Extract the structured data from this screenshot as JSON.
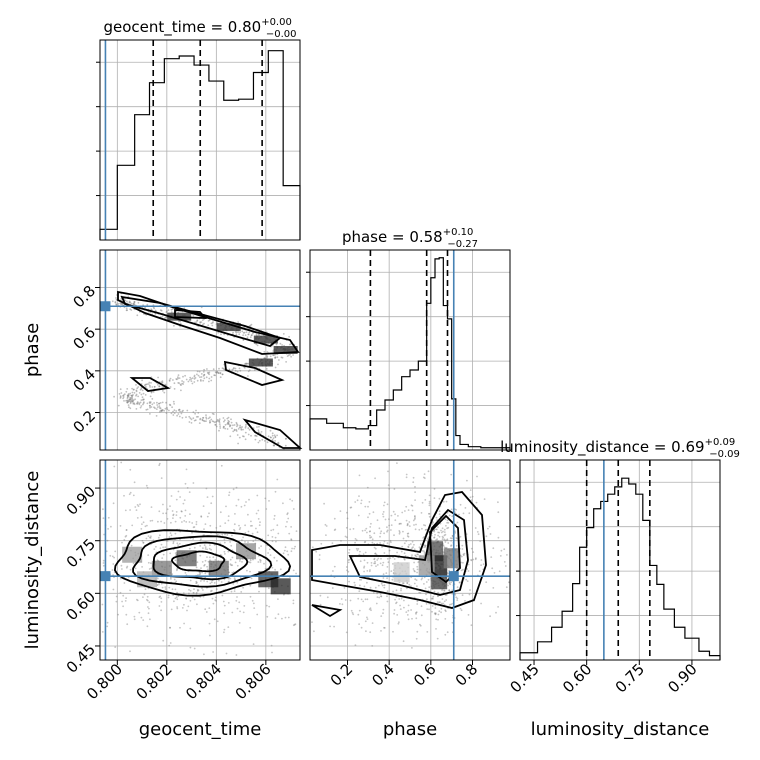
{
  "chart_data": {
    "type": "corner",
    "parameters": [
      "geocent_time",
      "phase",
      "luminosity_distance"
    ],
    "truths": {
      "geocent_time": 0.79952,
      "phase": 0.71,
      "luminosity_distance": 0.649
    },
    "panels": [
      {
        "id": "geocent_time-hist",
        "type": "histogram",
        "param": "geocent_time",
        "title_name": "geocent_time = 0.80",
        "title_plus": "+0.00",
        "title_minus": "−0.00",
        "xlim": [
          0.7993,
          0.80738
        ],
        "quantiles": [
          0.80145,
          0.80335,
          0.80585
        ],
        "bins": [
          0.7993,
          0.8,
          0.8007,
          0.8013,
          0.8019,
          0.8025,
          0.8031,
          0.8037,
          0.8043,
          0.8049,
          0.8055,
          0.8061,
          0.8067,
          0.80738
        ],
        "values": [
          0.2,
          1.4,
          2.35,
          2.95,
          3.4,
          3.45,
          3.28,
          2.98,
          2.62,
          2.64,
          3.14,
          3.55,
          1.02
        ],
        "ylim": [
          0,
          3.75
        ]
      },
      {
        "id": "phase-hist",
        "type": "histogram",
        "param": "phase",
        "title_name": "phase = 0.58",
        "title_plus": "+0.10",
        "title_minus": "−0.27",
        "xlim": [
          0.02,
          0.98
        ],
        "quantiles": [
          0.31,
          0.58,
          0.68
        ],
        "bins": [
          0.02,
          0.1,
          0.18,
          0.24,
          0.3,
          0.34,
          0.38,
          0.42,
          0.46,
          0.5,
          0.54,
          0.58,
          0.6,
          0.62,
          0.64,
          0.66,
          0.68,
          0.7,
          0.72,
          0.74,
          0.78,
          0.84,
          0.98
        ],
        "values": [
          0.28,
          0.24,
          0.2,
          0.19,
          0.22,
          0.36,
          0.45,
          0.54,
          0.66,
          0.72,
          0.8,
          1.32,
          1.55,
          1.72,
          1.73,
          1.3,
          1.18,
          0.46,
          0.13,
          0.05,
          0.03,
          0.02
        ],
        "ylim": [
          0,
          1.8
        ]
      },
      {
        "id": "luminosity_distance-hist",
        "type": "histogram",
        "param": "luminosity_distance",
        "title_name": "luminosity_distance = 0.69",
        "title_plus": "+0.09",
        "title_minus": "−0.09",
        "xlim": [
          0.41,
          0.98
        ],
        "quantiles": [
          0.6,
          0.69,
          0.78
        ],
        "bins": [
          0.41,
          0.46,
          0.5,
          0.53,
          0.56,
          0.58,
          0.6,
          0.62,
          0.64,
          0.66,
          0.68,
          0.7,
          0.72,
          0.74,
          0.76,
          0.78,
          0.8,
          0.82,
          0.85,
          0.88,
          0.92,
          0.95,
          0.98
        ],
        "values": [
          0.1,
          0.25,
          0.45,
          0.67,
          1.05,
          1.55,
          1.82,
          2.08,
          2.18,
          2.28,
          2.38,
          2.5,
          2.42,
          2.28,
          1.92,
          1.3,
          1.04,
          0.7,
          0.45,
          0.3,
          0.12,
          0.06
        ],
        "ylim": [
          0,
          2.75
        ]
      },
      {
        "id": "phase-vs-geocent_time",
        "type": "contour",
        "x": "geocent_time",
        "y": "phase",
        "xlim": [
          0.7993,
          0.80738
        ],
        "ylim": [
          0.02,
          0.98
        ],
        "cloud_path": [
          [
            0.7999,
            0.75
          ],
          [
            0.8007,
            0.71
          ],
          [
            0.8025,
            0.66
          ],
          [
            0.8045,
            0.61
          ],
          [
            0.8055,
            0.58
          ],
          [
            0.8069,
            0.5
          ],
          [
            0.8058,
            0.43
          ],
          [
            0.8035,
            0.38
          ],
          [
            0.8015,
            0.33
          ],
          [
            0.8002,
            0.27
          ],
          [
            0.8015,
            0.23
          ],
          [
            0.8035,
            0.17
          ],
          [
            0.805,
            0.12
          ],
          [
            0.8067,
            0.05
          ]
        ]
      },
      {
        "id": "luminosity_distance-vs-geocent_time",
        "type": "contour",
        "x": "geocent_time",
        "y": "luminosity_distance",
        "xlim": [
          0.7993,
          0.80738
        ],
        "ylim": [
          0.41,
          0.98
        ],
        "cloud_center": [
          0.8033,
          0.69
        ]
      },
      {
        "id": "luminosity_distance-vs-phase",
        "type": "contour",
        "x": "phase",
        "y": "luminosity_distance",
        "xlim": [
          0.02,
          0.98
        ],
        "ylim": [
          0.41,
          0.98
        ],
        "cloud_center": [
          0.58,
          0.69
        ]
      }
    ],
    "axes": {
      "geocent_time": {
        "label": "geocent_time",
        "ticks": [
          0.8,
          0.802,
          0.804,
          0.806
        ],
        "tick_labels": [
          "0.800",
          "0.802",
          "0.804",
          "0.806"
        ]
      },
      "phase": {
        "label": "phase",
        "ticks": [
          0.2,
          0.4,
          0.6,
          0.8
        ],
        "tick_labels": [
          "0.2",
          "0.4",
          "0.6",
          "0.8"
        ]
      },
      "luminosity_distance": {
        "label": "luminosity_distance",
        "ticks": [
          0.45,
          0.6,
          0.75,
          0.9
        ],
        "tick_labels": [
          "0.45",
          "0.60",
          "0.75",
          "0.90"
        ]
      }
    },
    "colors": {
      "truth": "#4682b4",
      "hist": "#000000",
      "grid": "#b0b0b0",
      "points": "#808080"
    }
  }
}
